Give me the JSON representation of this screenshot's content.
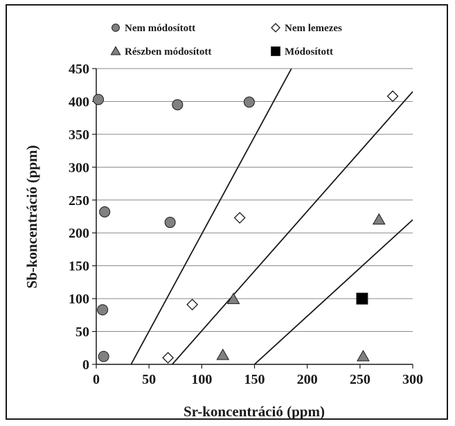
{
  "chart_data": {
    "type": "scatter",
    "xlabel": "Sr-koncentráció (ppm)",
    "ylabel": "Sb-koncentráció (ppm)",
    "xlim": [
      0,
      300
    ],
    "ylim": [
      0,
      450
    ],
    "xticks": [
      "0",
      "50",
      "100",
      "150",
      "200",
      "250",
      "300"
    ],
    "yticks": [
      "0",
      "50",
      "100",
      "150",
      "200",
      "250",
      "300",
      "350",
      "400",
      "450"
    ],
    "grid": "horizontal",
    "legend_position": "top",
    "series": [
      {
        "name": "Nem módosított",
        "marker": "circle",
        "color": "#808080",
        "points": [
          [
            2,
            403
          ],
          [
            77,
            395
          ],
          [
            145,
            399
          ],
          [
            8,
            232
          ],
          [
            70,
            216
          ],
          [
            6,
            83
          ],
          [
            7,
            12
          ]
        ]
      },
      {
        "name": "Nem lemezes",
        "marker": "diamond",
        "color": "#ffffff",
        "points": [
          [
            281,
            408
          ],
          [
            136,
            223
          ],
          [
            91,
            91
          ],
          [
            68,
            10
          ]
        ]
      },
      {
        "name": "Részben módosított",
        "marker": "triangle",
        "color": "#808080",
        "points": [
          [
            268,
            220
          ],
          [
            130,
            99
          ],
          [
            120,
            14
          ],
          [
            253,
            12
          ]
        ]
      },
      {
        "name": "Módosított",
        "marker": "square",
        "color": "#000000",
        "points": [
          [
            252,
            100
          ]
        ]
      }
    ],
    "lines": [
      {
        "from": [
          33,
          0
        ],
        "to": [
          185,
          450
        ]
      },
      {
        "from": [
          72,
          0
        ],
        "to": [
          300,
          415
        ]
      },
      {
        "from": [
          150,
          0
        ],
        "to": [
          300,
          220
        ]
      }
    ]
  }
}
